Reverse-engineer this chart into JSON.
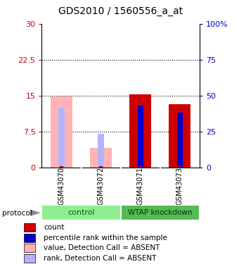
{
  "title": "GDS2010 / 1560556_a_at",
  "samples": [
    "GSM43070",
    "GSM43072",
    "GSM43071",
    "GSM43073"
  ],
  "ylim_left": [
    0,
    30
  ],
  "ylim_right": [
    0,
    100
  ],
  "yticks_left": [
    0,
    7.5,
    15,
    22.5,
    30
  ],
  "yticks_right": [
    0,
    25,
    50,
    75,
    100
  ],
  "ytick_labels_left": [
    "0",
    "7.5",
    "15",
    "22.5",
    "30"
  ],
  "ytick_labels_right": [
    "0",
    "25",
    "50",
    "75",
    "100%"
  ],
  "bars": [
    {
      "sample": "GSM43070",
      "value_bar": 14.8,
      "value_color": "#ffb3b3",
      "rank_bar": 12.5,
      "rank_color": "#b3b3ff",
      "count_bar": 0.25,
      "count_color": "#cc0000",
      "absent": true
    },
    {
      "sample": "GSM43072",
      "value_bar": 4.2,
      "value_color": "#ffb3b3",
      "rank_bar": 7.0,
      "rank_color": "#b3b3ff",
      "count_bar": 0.25,
      "count_color": "#cc0000",
      "absent": true
    },
    {
      "sample": "GSM43071",
      "value_bar": 15.3,
      "value_color": "#cc0000",
      "rank_bar": 13.0,
      "rank_color": "#0000cc",
      "count_bar": 0.25,
      "count_color": "#cc0000",
      "absent": false
    },
    {
      "sample": "GSM43073",
      "value_bar": 13.3,
      "value_color": "#cc0000",
      "rank_bar": 11.5,
      "rank_color": "#0000cc",
      "count_bar": 0.25,
      "count_color": "#cc0000",
      "absent": false
    }
  ],
  "ctrl_color": "#90ee90",
  "wtap_color": "#55bb55",
  "ctrl_label_color": "#006400",
  "wtap_label_color": "#003300",
  "bg_color": "#ffffff",
  "legend_items": [
    {
      "label": "count",
      "color": "#cc0000"
    },
    {
      "label": "percentile rank within the sample",
      "color": "#0000cc"
    },
    {
      "label": "value, Detection Call = ABSENT",
      "color": "#ffb3b3"
    },
    {
      "label": "rank, Detection Call = ABSENT",
      "color": "#b3b3ff"
    }
  ],
  "title_fontsize": 10,
  "tick_fontsize": 8,
  "legend_fontsize": 7.5
}
